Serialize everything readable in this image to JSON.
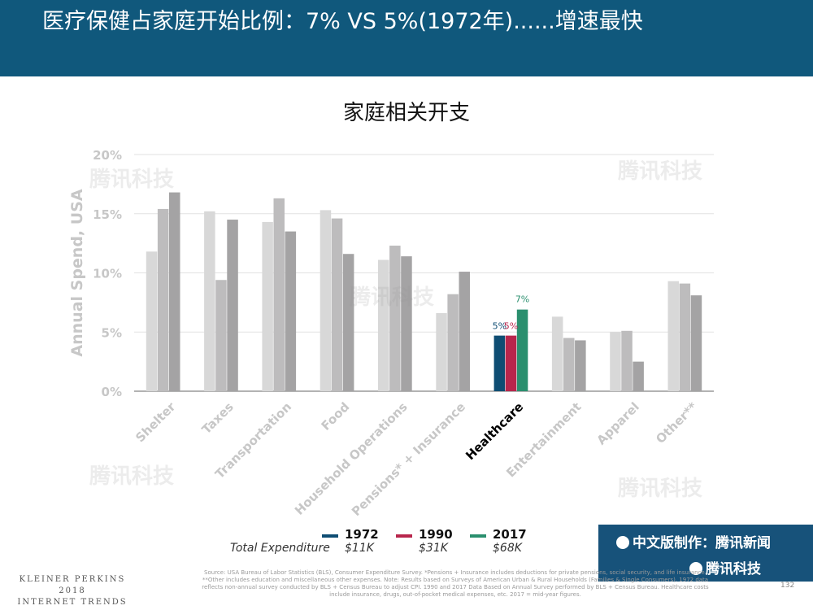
{
  "header": {
    "title": "医疗保健占家庭开始比例：7% VS 5%(1972年)......增速最快"
  },
  "chart_data": {
    "type": "bar",
    "title": "家庭相关开支",
    "ylabel": "Annual Spend, USA",
    "ylim": [
      0,
      20
    ],
    "yticks": [
      "0%",
      "5%",
      "10%",
      "15%",
      "20%"
    ],
    "grid": true,
    "categories": [
      "Shelter",
      "Taxes",
      "Transportation",
      "Food",
      "Household Operations",
      "Pensions* + Insurance",
      "Healthcare",
      "Entertainment",
      "Apparel",
      "Other**"
    ],
    "highlight_category": "Healthcare",
    "series": [
      {
        "name": "1972",
        "values": [
          11.8,
          15.2,
          14.3,
          15.3,
          11.1,
          6.6,
          4.7,
          6.3,
          5.0,
          9.3
        ]
      },
      {
        "name": "1990",
        "values": [
          15.4,
          9.4,
          16.3,
          14.6,
          12.3,
          8.2,
          4.7,
          4.5,
          5.1,
          9.1
        ]
      },
      {
        "name": "2017",
        "values": [
          16.8,
          14.5,
          13.5,
          11.6,
          11.4,
          10.1,
          6.9,
          4.3,
          2.5,
          8.1
        ]
      }
    ],
    "data_labels": [
      {
        "category": "Healthcare",
        "series": "1972",
        "text": "5%"
      },
      {
        "category": "Healthcare",
        "series": "1990",
        "text": "5%"
      },
      {
        "category": "Healthcare",
        "series": "2017",
        "text": "7%"
      }
    ],
    "colors": {
      "gray_shades": [
        "#d8d8d8",
        "#bdbcbd",
        "#a4a3a4"
      ],
      "highlight": [
        "#0e4d73",
        "#b8264c",
        "#2a8f6e"
      ]
    },
    "legend": {
      "placement": "bottom",
      "total_label": "Total Expenditure",
      "items": [
        {
          "year": "1972",
          "expenditure": "$11K"
        },
        {
          "year": "1990",
          "expenditure": "$31K"
        },
        {
          "year": "2017",
          "expenditure": "$68K"
        }
      ]
    }
  },
  "badge": {
    "line1": "中文版制作：腾讯新闻",
    "line2": "腾讯科技"
  },
  "watermark_text": "腾讯科技",
  "source": "Source: USA Bureau of Labor Statistics (BLS), Consumer Expenditure Survey. *Pensions + Insurance includes deductions for private pensions, social security, and life insurance. **Other includes education and miscellaneous other expenses. Note: Results based on Surveys of American Urban & Rural Households (Families & Single Consumers). 1972 data reflects non-annual survey conducted by BLS + Census Bureau to adjust CPI. 1990 and 2017 Data Based on Annual Survey performed by BLS + Census Bureau. Healthcare costs include insurance, drugs, out-of-pocket medical expenses, etc. 2017 = mid-year figures.",
  "footer": {
    "line1": "KLEINER PERKINS",
    "line2": "2018",
    "line3": "INTERNET TRENDS"
  },
  "page_number": "132"
}
